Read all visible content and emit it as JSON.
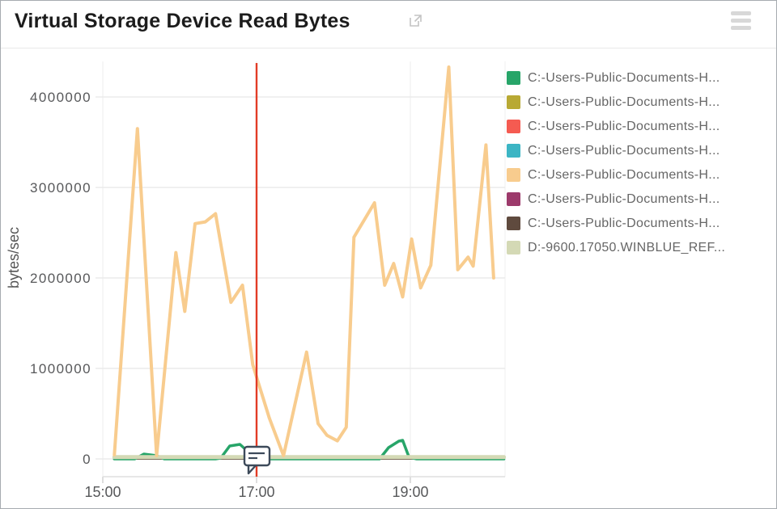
{
  "header": {
    "title": "Virtual Storage Device Read Bytes"
  },
  "legend": {
    "items": [
      {
        "label": "C:-Users-Public-Documents-H...",
        "color": "#27a569"
      },
      {
        "label": "C:-Users-Public-Documents-H...",
        "color": "#b8a934"
      },
      {
        "label": "C:-Users-Public-Documents-H...",
        "color": "#f55b51"
      },
      {
        "label": "C:-Users-Public-Documents-H...",
        "color": "#3cb5c4"
      },
      {
        "label": "C:-Users-Public-Documents-H...",
        "color": "#f8cc8e"
      },
      {
        "label": "C:-Users-Public-Documents-H...",
        "color": "#9c3a6b"
      },
      {
        "label": "C:-Users-Public-Documents-H...",
        "color": "#5f4a3e"
      },
      {
        "label": "D:-9600.17050.WINBLUE_REF...",
        "color": "#d4d9b5"
      }
    ]
  },
  "chart_data": {
    "type": "line",
    "title": "Virtual Storage Device Read Bytes",
    "xlabel": "",
    "ylabel": "bytes/sec",
    "x_ticks": [
      "15:00",
      "17:00",
      "19:00"
    ],
    "y_ticks": [
      {
        "label": "0",
        "value": 0
      },
      {
        "label": "1000000",
        "value": 1000000
      },
      {
        "label": "2000000",
        "value": 2000000
      },
      {
        "label": "3000000",
        "value": 3000000
      },
      {
        "label": "4000000",
        "value": 4000000
      }
    ],
    "ylim": [
      0,
      4390000
    ],
    "grid": true,
    "legend_position": "right",
    "annotation": {
      "time": "17:00",
      "line_color": "#e23c26",
      "icon": "comment-bubble-icon"
    },
    "series": [
      {
        "name": "C:-Users-Public-Documents-H...",
        "color": "#27a569",
        "stroke_width": 3.5,
        "points": [
          {
            "t": "15:09",
            "v": 0
          },
          {
            "t": "15:25",
            "v": 0
          },
          {
            "t": "15:32",
            "v": 54000
          },
          {
            "t": "15:42",
            "v": 36000
          },
          {
            "t": "15:48",
            "v": 0
          },
          {
            "t": "16:28",
            "v": 0
          },
          {
            "t": "16:32",
            "v": 9000
          },
          {
            "t": "16:39",
            "v": 143000
          },
          {
            "t": "16:47",
            "v": 161000
          },
          {
            "t": "16:52",
            "v": 98000
          },
          {
            "t": "16:57",
            "v": 9000
          },
          {
            "t": "17:00",
            "v": 0
          },
          {
            "t": "18:30",
            "v": 0
          },
          {
            "t": "18:36",
            "v": 0
          },
          {
            "t": "18:43",
            "v": 125000
          },
          {
            "t": "18:51",
            "v": 196000
          },
          {
            "t": "18:54",
            "v": 205000
          },
          {
            "t": "18:59",
            "v": 18000
          },
          {
            "t": "19:05",
            "v": 0
          },
          {
            "t": "20:13",
            "v": 0
          }
        ]
      },
      {
        "name": "C:-Users-Public-Documents-H...",
        "color": "#b8a934",
        "stroke_width": 2,
        "points": [
          {
            "t": "15:09",
            "v": 0
          },
          {
            "t": "20:13",
            "v": 0
          }
        ]
      },
      {
        "name": "C:-Users-Public-Documents-H...",
        "color": "#f55b51",
        "stroke_width": 2,
        "points": [
          {
            "t": "15:09",
            "v": 0
          },
          {
            "t": "20:13",
            "v": 0
          }
        ]
      },
      {
        "name": "C:-Users-Public-Documents-H...",
        "color": "#3cb5c4",
        "stroke_width": 2,
        "points": [
          {
            "t": "15:09",
            "v": 0
          },
          {
            "t": "20:13",
            "v": 0
          }
        ]
      },
      {
        "name": "C:-Users-Public-Documents-H...",
        "color": "#f8cc8e",
        "stroke_width": 4,
        "points": [
          {
            "t": "15:09",
            "v": 45000
          },
          {
            "t": "15:27",
            "v": 3650000
          },
          {
            "t": "15:42",
            "v": 36000
          },
          {
            "t": "15:57",
            "v": 2280000
          },
          {
            "t": "16:04",
            "v": 1630000
          },
          {
            "t": "16:12",
            "v": 2600000
          },
          {
            "t": "16:20",
            "v": 2620000
          },
          {
            "t": "16:28",
            "v": 2710000
          },
          {
            "t": "16:40",
            "v": 1730000
          },
          {
            "t": "16:49",
            "v": 1920000
          },
          {
            "t": "16:57",
            "v": 1040000
          },
          {
            "t": "17:10",
            "v": 450000
          },
          {
            "t": "17:21",
            "v": 36000
          },
          {
            "t": "17:39",
            "v": 1180000
          },
          {
            "t": "17:48",
            "v": 390000
          },
          {
            "t": "17:55",
            "v": 260000
          },
          {
            "t": "18:03",
            "v": 200000
          },
          {
            "t": "18:10",
            "v": 350000
          },
          {
            "t": "18:16",
            "v": 2450000
          },
          {
            "t": "18:32",
            "v": 2830000
          },
          {
            "t": "18:40",
            "v": 1920000
          },
          {
            "t": "18:47",
            "v": 2160000
          },
          {
            "t": "18:54",
            "v": 1790000
          },
          {
            "t": "19:01",
            "v": 2430000
          },
          {
            "t": "19:08",
            "v": 1890000
          },
          {
            "t": "19:16",
            "v": 2140000
          },
          {
            "t": "19:30",
            "v": 4330000
          },
          {
            "t": "19:37",
            "v": 2090000
          },
          {
            "t": "19:45",
            "v": 2230000
          },
          {
            "t": "19:49",
            "v": 2130000
          },
          {
            "t": "19:59",
            "v": 3470000
          },
          {
            "t": "20:05",
            "v": 2000000
          }
        ]
      },
      {
        "name": "C:-Users-Public-Documents-H...",
        "color": "#9c3a6b",
        "stroke_width": 2,
        "points": [
          {
            "t": "15:09",
            "v": 0
          },
          {
            "t": "20:13",
            "v": 0
          }
        ]
      },
      {
        "name": "C:-Users-Public-Documents-H...",
        "color": "#5f4a3e",
        "stroke_width": 2,
        "points": [
          {
            "t": "15:09",
            "v": 0
          },
          {
            "t": "20:13",
            "v": 0
          }
        ]
      },
      {
        "name": "D:-9600.17050.WINBLUE_REF...",
        "color": "#d4d9b5",
        "stroke_width": 5,
        "points": [
          {
            "t": "15:09",
            "v": 20000
          },
          {
            "t": "20:13",
            "v": 20000
          }
        ]
      }
    ]
  }
}
